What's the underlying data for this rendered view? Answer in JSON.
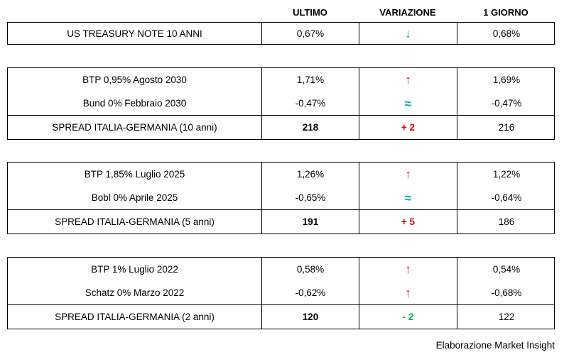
{
  "header": {
    "ultimo": "ULTIMO",
    "variazione": "VARIAZIONE",
    "giorno": "1 GIORNO"
  },
  "colors": {
    "red": "#e00000",
    "green": "#00b050",
    "teal": "#00b0a0"
  },
  "groups": [
    {
      "rows": [
        {
          "label": "US TREASURY NOTE 10 ANNI",
          "ultimo": "0,67%",
          "symbol": "↓",
          "giorno": "0,68%"
        }
      ]
    },
    {
      "rows": [
        {
          "label": "BTP 0,95% Agosto 2030",
          "ultimo": "1,71%",
          "symbol": "↑",
          "giorno": "1,69%"
        },
        {
          "label": "Bund 0% Febbraio 2030",
          "ultimo": "-0,47%",
          "symbol": "≈",
          "giorno": "-0,47%"
        },
        {
          "label": "SPREAD ITALIA-GERMANIA (10 anni)",
          "ultimo": "218",
          "symbol": "+ 2",
          "giorno": "216"
        }
      ]
    },
    {
      "rows": [
        {
          "label": "BTP 1,85% Luglio 2025",
          "ultimo": "1,26%",
          "symbol": "↑",
          "giorno": "1,22%"
        },
        {
          "label": "Bobl 0% Aprile 2025",
          "ultimo": "-0,65%",
          "symbol": "≈",
          "giorno": "-0,64%"
        },
        {
          "label": "SPREAD ITALIA-GERMANIA (5 anni)",
          "ultimo": "191",
          "symbol": "+ 5",
          "giorno": "186"
        }
      ]
    },
    {
      "rows": [
        {
          "label": "BTP 1% Luglio 2022",
          "ultimo": "0,58%",
          "symbol": "↑",
          "giorno": "0,54%"
        },
        {
          "label": "Schatz 0% Marzo 2022",
          "ultimo": "-0,62%",
          "symbol": "↑",
          "giorno": "-0,68%"
        },
        {
          "label": "SPREAD ITALIA-GERMANIA (2 anni)",
          "ultimo": "120",
          "symbol": "- 2",
          "giorno": "122"
        }
      ]
    }
  ],
  "footer": {
    "credit": "Elaborazione Market Insight"
  },
  "chart_data": {
    "type": "table",
    "columns": [
      "",
      "ULTIMO",
      "VARIAZIONE",
      "1 GIORNO"
    ],
    "rows": [
      [
        "US TREASURY NOTE 10 ANNI",
        "0,67%",
        "↓ (down, green)",
        "0,68%"
      ],
      [
        "BTP 0,95% Agosto 2030",
        "1,71%",
        "↑ (up, red)",
        "1,69%"
      ],
      [
        "Bund 0% Febbraio 2030",
        "-0,47%",
        "≈ (unchanged, teal)",
        "-0,47%"
      ],
      [
        "SPREAD ITALIA-GERMANIA (10 anni)",
        "218",
        "+ 2 (red)",
        "216"
      ],
      [
        "BTP 1,85% Luglio 2025",
        "1,26%",
        "↑ (up, red)",
        "1,22%"
      ],
      [
        "Bobl 0% Aprile 2025",
        "-0,65%",
        "≈ (unchanged, teal)",
        "-0,64%"
      ],
      [
        "SPREAD ITALIA-GERMANIA (5 anni)",
        "191",
        "+ 5 (red)",
        "186"
      ],
      [
        "BTP 1% Luglio 2022",
        "0,58%",
        "↑ (up, red)",
        "0,54%"
      ],
      [
        "Schatz 0% Marzo 2022",
        "-0,62%",
        "↑ (up, red)",
        "-0,68%"
      ],
      [
        "SPREAD ITALIA-GERMANIA (2 anni)",
        "120",
        "- 2 (green)",
        "122"
      ]
    ],
    "title": "",
    "notes": "Italian vs German government bond yields and spreads; source credit: Elaborazione Market Insight"
  }
}
